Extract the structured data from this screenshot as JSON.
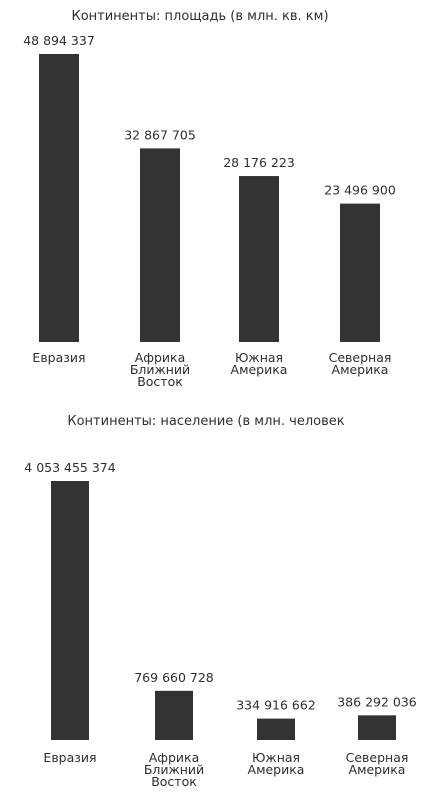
{
  "chart_data": [
    {
      "type": "bar",
      "title": "Континенты: площадь (в млн. кв. км)",
      "categories": [
        [
          "Евразия"
        ],
        [
          "Африка",
          "Ближний",
          "Восток"
        ],
        [
          "Южная",
          "Америка"
        ],
        [
          "Северная",
          "Америка"
        ]
      ],
      "values": [
        48894337,
        32867705,
        28176223,
        23496900
      ],
      "value_labels": [
        "48 894 337",
        "32 867 705",
        "28 176 223",
        "23 496 900"
      ],
      "ylim": [
        0,
        48894337
      ],
      "bar_color": "#333333",
      "grid": false,
      "legend": "none"
    },
    {
      "type": "bar",
      "title": "Континенты: население (в млн. человек",
      "categories": [
        [
          "Евразия"
        ],
        [
          "Африка",
          "Ближний",
          "Восток"
        ],
        [
          "Южная",
          "Америка"
        ],
        [
          "Северная",
          "Америка"
        ]
      ],
      "values": [
        4053455374,
        769660728,
        334916662,
        386292036
      ],
      "value_labels": [
        "4 053 455 374",
        "769 660 728",
        "334 916 662",
        "386 292 036"
      ],
      "ylim": [
        0,
        4053455374
      ],
      "bar_color": "#333333",
      "grid": false,
      "legend": "none"
    }
  ]
}
